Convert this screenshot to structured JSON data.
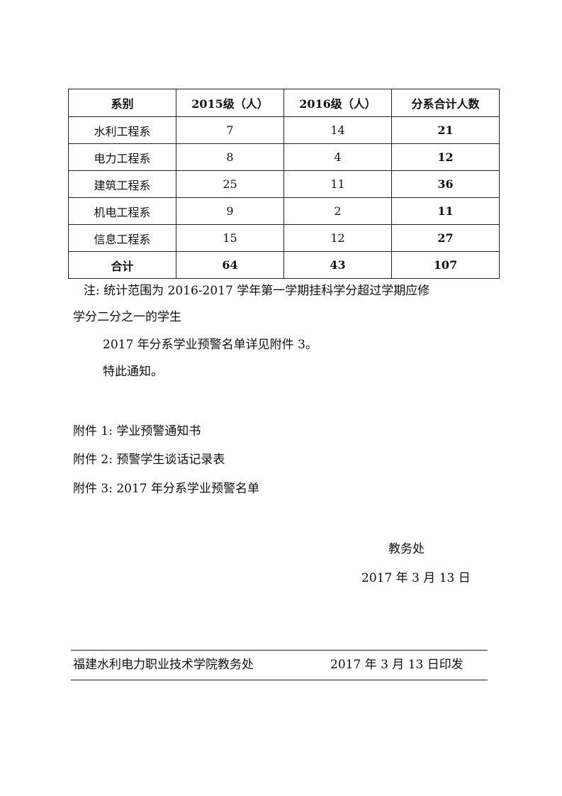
{
  "table": {
    "headers": [
      "系别",
      "2015级（人）",
      "2016级（人）",
      "分系合计人数"
    ],
    "rows": [
      [
        "水利工程系",
        "7",
        "14",
        "21"
      ],
      [
        "电力工程系",
        "8",
        "4",
        "12"
      ],
      [
        "建筑工程系",
        "25",
        "11",
        "36"
      ],
      [
        "机电工程系",
        "9",
        "2",
        "11"
      ],
      [
        "信息工程系",
        "15",
        "12",
        "27"
      ]
    ],
    "total": [
      "合计",
      "64",
      "43",
      "107"
    ]
  },
  "note_line1": "注: 统计范围为 2016-2017 学年第一学期挂科学分超过学期应修",
  "note_line2": "学分二分之一的学生",
  "para1": "2017 年分系学业预警名单详见附件 3。",
  "para2": "特此通知。",
  "attachments": [
    "附件 1: 学业预警通知书",
    "附件 2: 预警学生谈话记录表",
    "附件 3: 2017 年分系学业预警名单"
  ],
  "signature": {
    "office": "教务处",
    "date": "2017 年 3 月 13 日"
  },
  "footer": {
    "issuer": "福建水利电力职业技术学院教务处",
    "print_date": "2017 年 3 月 13 日印发"
  }
}
